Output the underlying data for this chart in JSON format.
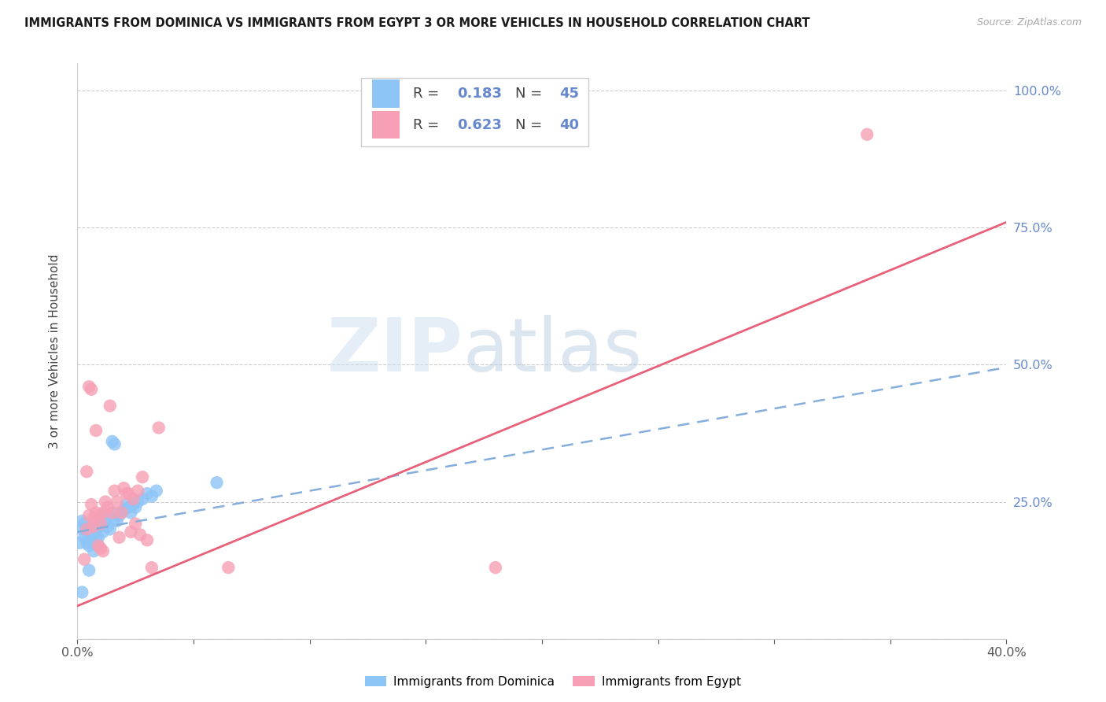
{
  "title": "IMMIGRANTS FROM DOMINICA VS IMMIGRANTS FROM EGYPT 3 OR MORE VEHICLES IN HOUSEHOLD CORRELATION CHART",
  "source": "Source: ZipAtlas.com",
  "ylabel": "3 or more Vehicles in Household",
  "xlim": [
    0.0,
    0.4
  ],
  "ylim": [
    0.0,
    1.05
  ],
  "xticks": [
    0.0,
    0.05,
    0.1,
    0.15,
    0.2,
    0.25,
    0.3,
    0.35,
    0.4
  ],
  "xticklabels_show": [
    "0.0%",
    "",
    "",
    "",
    "",
    "",
    "",
    "",
    "40.0%"
  ],
  "yticks": [
    0.0,
    0.25,
    0.5,
    0.75,
    1.0
  ],
  "yticklabels_right": [
    "",
    "25.0%",
    "50.0%",
    "75.0%",
    "100.0%"
  ],
  "dominica_color": "#8EC5F7",
  "egypt_color": "#F7A0B5",
  "dominica_line_color": "#85AEDD",
  "egypt_line_color": "#E8607A",
  "R_dominica": 0.183,
  "N_dominica": 45,
  "R_egypt": 0.623,
  "N_egypt": 40,
  "label_dominica": "Immigrants from Dominica",
  "label_egypt": "Immigrants from Egypt",
  "bg_color": "#FFFFFF",
  "grid_color": "#cccccc",
  "right_tick_color": "#6688CC",
  "dominica_scatter": [
    [
      0.001,
      0.175
    ],
    [
      0.002,
      0.2
    ],
    [
      0.002,
      0.215
    ],
    [
      0.003,
      0.185
    ],
    [
      0.003,
      0.21
    ],
    [
      0.004,
      0.195
    ],
    [
      0.004,
      0.175
    ],
    [
      0.005,
      0.2
    ],
    [
      0.005,
      0.17
    ],
    [
      0.006,
      0.185
    ],
    [
      0.006,
      0.195
    ],
    [
      0.007,
      0.175
    ],
    [
      0.007,
      0.16
    ],
    [
      0.008,
      0.185
    ],
    [
      0.008,
      0.2
    ],
    [
      0.009,
      0.17
    ],
    [
      0.009,
      0.185
    ],
    [
      0.01,
      0.205
    ],
    [
      0.01,
      0.22
    ],
    [
      0.011,
      0.195
    ],
    [
      0.011,
      0.225
    ],
    [
      0.012,
      0.215
    ],
    [
      0.013,
      0.205
    ],
    [
      0.014,
      0.2
    ],
    [
      0.015,
      0.23
    ],
    [
      0.015,
      0.36
    ],
    [
      0.016,
      0.22
    ],
    [
      0.016,
      0.355
    ],
    [
      0.017,
      0.215
    ],
    [
      0.018,
      0.225
    ],
    [
      0.019,
      0.23
    ],
    [
      0.02,
      0.235
    ],
    [
      0.021,
      0.245
    ],
    [
      0.022,
      0.24
    ],
    [
      0.023,
      0.23
    ],
    [
      0.024,
      0.245
    ],
    [
      0.025,
      0.24
    ],
    [
      0.026,
      0.25
    ],
    [
      0.028,
      0.255
    ],
    [
      0.03,
      0.265
    ],
    [
      0.032,
      0.26
    ],
    [
      0.034,
      0.27
    ],
    [
      0.002,
      0.085
    ],
    [
      0.005,
      0.125
    ],
    [
      0.06,
      0.285
    ]
  ],
  "egypt_scatter": [
    [
      0.003,
      0.145
    ],
    [
      0.004,
      0.2
    ],
    [
      0.005,
      0.225
    ],
    [
      0.005,
      0.46
    ],
    [
      0.006,
      0.245
    ],
    [
      0.006,
      0.455
    ],
    [
      0.007,
      0.22
    ],
    [
      0.007,
      0.205
    ],
    [
      0.008,
      0.23
    ],
    [
      0.008,
      0.38
    ],
    [
      0.009,
      0.225
    ],
    [
      0.009,
      0.17
    ],
    [
      0.01,
      0.21
    ],
    [
      0.01,
      0.165
    ],
    [
      0.011,
      0.23
    ],
    [
      0.011,
      0.16
    ],
    [
      0.012,
      0.25
    ],
    [
      0.013,
      0.24
    ],
    [
      0.014,
      0.425
    ],
    [
      0.015,
      0.23
    ],
    [
      0.016,
      0.27
    ],
    [
      0.017,
      0.25
    ],
    [
      0.018,
      0.185
    ],
    [
      0.019,
      0.23
    ],
    [
      0.02,
      0.275
    ],
    [
      0.021,
      0.265
    ],
    [
      0.022,
      0.265
    ],
    [
      0.023,
      0.195
    ],
    [
      0.024,
      0.255
    ],
    [
      0.025,
      0.21
    ],
    [
      0.026,
      0.27
    ],
    [
      0.027,
      0.19
    ],
    [
      0.028,
      0.295
    ],
    [
      0.03,
      0.18
    ],
    [
      0.032,
      0.13
    ],
    [
      0.035,
      0.385
    ],
    [
      0.065,
      0.13
    ],
    [
      0.18,
      0.13
    ],
    [
      0.34,
      0.92
    ],
    [
      0.004,
      0.305
    ]
  ],
  "dominica_line_x": [
    0.0,
    0.4
  ],
  "dominica_line_y": [
    0.195,
    0.495
  ],
  "egypt_line_x": [
    0.0,
    0.4
  ],
  "egypt_line_y": [
    0.06,
    0.76
  ]
}
